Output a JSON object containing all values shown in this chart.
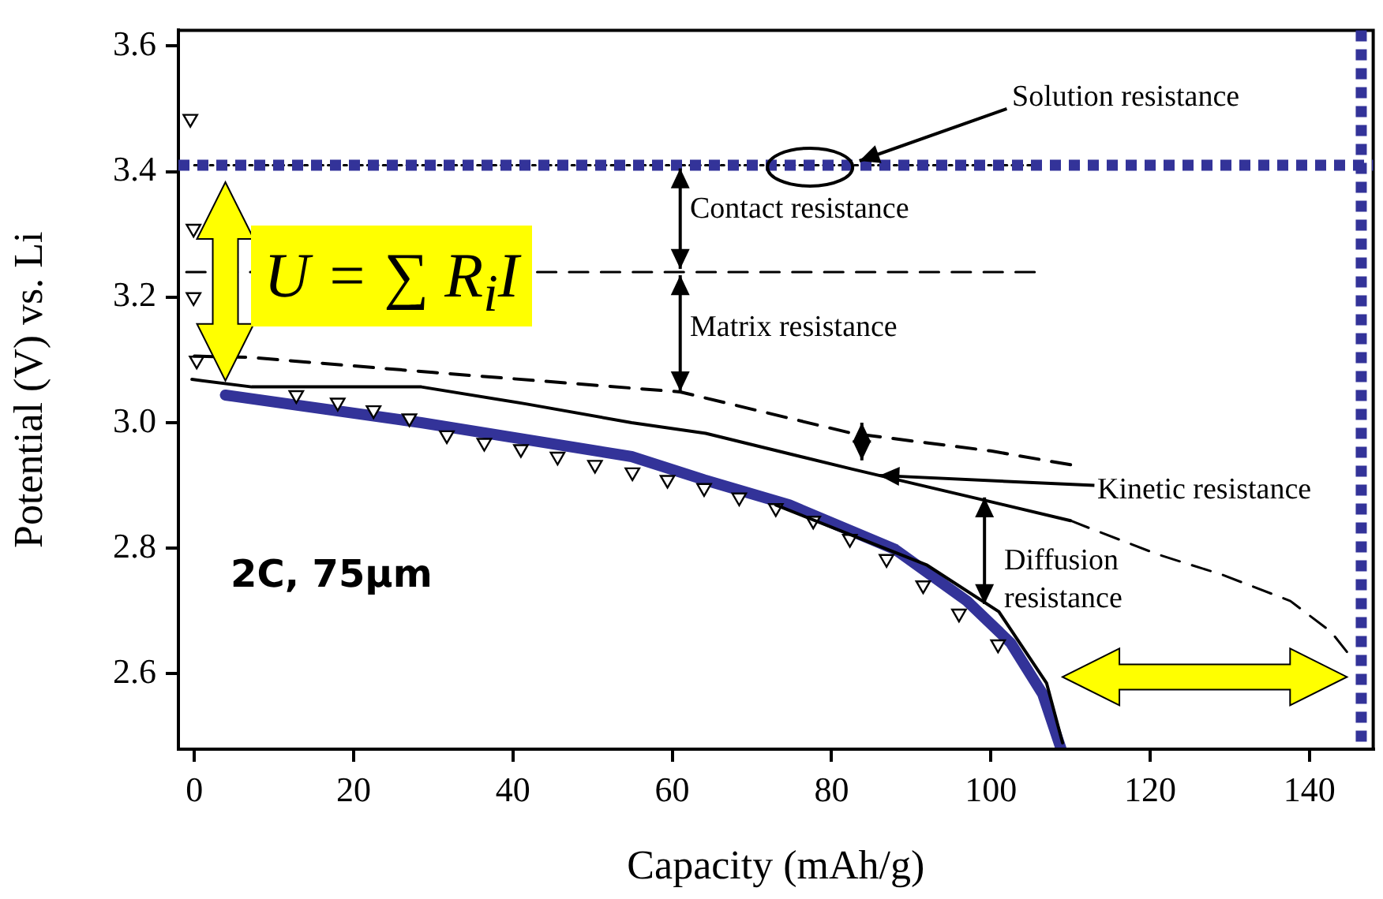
{
  "chart_data": {
    "type": "line",
    "xlabel": "Capacity (mAh/g)",
    "ylabel": "Potential (V) vs. Li",
    "xlim": [
      -2,
      148
    ],
    "ylim": [
      2.48,
      3.625
    ],
    "xticks": [
      0,
      20,
      40,
      60,
      80,
      100,
      120,
      140
    ],
    "yticks": [
      2.6,
      2.8,
      {
        "value": 3,
        "label": "3.0"
      },
      3.2,
      3.4,
      3.6
    ],
    "grid": false,
    "legend": false,
    "series": [
      {
        "type": "line",
        "color": "#000000",
        "line_style": "dotted",
        "marker": "none",
        "x": [
          0,
          105
        ],
        "values": [
          3.41,
          3.41
        ]
      },
      {
        "type": "line",
        "color": "#000000",
        "line_style": "dashed",
        "marker": "none",
        "x": [
          -1,
          105.5
        ],
        "values": [
          3.24,
          3.24
        ]
      },
      {
        "type": "line",
        "color": "#000000",
        "line_style": "dashed",
        "marker": "none",
        "x": [
          0,
          7,
          30,
          61,
          82.6,
          100,
          110
        ],
        "values": [
          3.106,
          3.104,
          3.08,
          3.049,
          2.983,
          2.955,
          2.933
        ]
      },
      {
        "type": "line",
        "color": "#000000",
        "line_style": "solid",
        "marker": "none",
        "x": [
          -0.3,
          7.2,
          28.5,
          41.6,
          54.9,
          64.2,
          82.6,
          99,
          110
        ],
        "values": [
          3.069,
          3.057,
          3.057,
          3.03,
          3.0,
          2.983,
          2.926,
          2.877,
          2.844
        ]
      },
      {
        "type": "line",
        "color": "#000000",
        "line_style": "dashed",
        "marker": "none",
        "x": [
          110,
          112.4,
          121,
          129,
          137.6,
          142.7,
          144.7
        ],
        "values": [
          2.844,
          2.832,
          2.79,
          2.758,
          2.716,
          2.667,
          2.635
        ]
      },
      {
        "type": "line",
        "color": "#000000",
        "line_style": "solid",
        "marker": "none",
        "x": [
          73,
          92,
          101,
          107,
          109
        ],
        "values": [
          2.869,
          2.773,
          2.699,
          2.585,
          2.49
        ]
      },
      {
        "type": "scatter",
        "color": "#000000",
        "marker": "triangle",
        "x": [
          -0.5,
          -0.1,
          -0.1,
          0.3,
          12.8,
          18,
          22.5,
          27,
          31.7,
          36.4,
          41,
          45.6,
          50.3,
          55,
          59.4,
          64,
          68.4,
          73,
          77.7,
          82.3,
          86.9,
          91.5,
          96,
          100.9
        ],
        "values": [
          3.484,
          3.309,
          3.2,
          3.099,
          3.044,
          3.032,
          3.02,
          3.007,
          2.98,
          2.968,
          2.958,
          2.946,
          2.933,
          2.921,
          2.909,
          2.896,
          2.881,
          2.864,
          2.844,
          2.815,
          2.783,
          2.741,
          2.696,
          2.647
        ]
      },
      {
        "type": "line",
        "color": "#333399",
        "line_style": "solid",
        "marker": "none",
        "x": [
          3.9,
          28.5,
          54.9,
          64,
          74.7,
          88,
          97,
          102.5,
          106.5,
          108.8
        ],
        "values": [
          3.044,
          3.0,
          2.946,
          2.909,
          2.869,
          2.798,
          2.716,
          2.649,
          2.568,
          2.481
        ]
      }
    ],
    "ref_lines": [
      {
        "axis": "y",
        "value": 3.41,
        "color": "#333399",
        "line_style": "dotted"
      },
      {
        "axis": "x",
        "value": 146.5,
        "color": "#333399",
        "line_style": "dotted"
      }
    ],
    "annotations": [
      {
        "text": "Solution resistance",
        "x": 83.5,
        "y": 3.417
      },
      {
        "text": "Contact resistance",
        "x": 61,
        "y": 3.405
      },
      {
        "text": "Matrix resistance",
        "x": 61,
        "y": 3.05
      },
      {
        "text": "Kinetic resistance",
        "x": 86,
        "y": 2.916
      },
      {
        "text": "Diffusion resistance",
        "x": 99.2,
        "y": 2.711
      },
      "U = ∑ R$_{i}$I",
      "2C, 75μm"
    ]
  }
}
